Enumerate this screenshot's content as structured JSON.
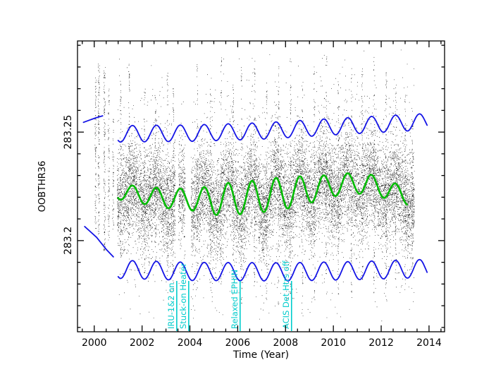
{
  "figure": {
    "background": "#ffffff"
  },
  "chart_data": {
    "type": "scatter",
    "title": "",
    "xlabel": "Time (Year)",
    "ylabel": "OOBTHR36",
    "xlim": [
      1999.3,
      2014.65
    ],
    "ylim": [
      283.158,
      283.292
    ],
    "x_ticks": [
      2000,
      2002,
      2004,
      2006,
      2008,
      2010,
      2012,
      2014
    ],
    "x_tick_labels": [
      "2000",
      "2002",
      "2004",
      "2006",
      "2008",
      "2010",
      "2012",
      "2014"
    ],
    "x_minor_step": 0.5,
    "y_ticks": [
      283.2,
      283.25
    ],
    "y_tick_labels": [
      "283.2",
      "283.25"
    ],
    "y_minor_step": 0.01,
    "grid": false,
    "legend": false,
    "colors": {
      "points": "#000000",
      "mean": "#00bb00",
      "envelope": "#1414e6",
      "annotation": "#00cccc",
      "axis": "#000000",
      "text": "#000000"
    },
    "series": [
      {
        "name": "seasonal-mean",
        "color": "mean",
        "stroke_width": 2.6,
        "type": "sinusoid",
        "period": 1.0,
        "phase": 0.35,
        "x_start": 2001.0,
        "x_end": 2013.1,
        "amplitude": 0.0055,
        "amp_trend": [
          [
            2001,
            0.0035
          ],
          [
            2004,
            0.005
          ],
          [
            2005.5,
            0.0075
          ],
          [
            2008,
            0.0075
          ],
          [
            2010,
            0.005
          ],
          [
            2013.1,
            0.004
          ]
        ],
        "trend": [
          [
            2001,
            283.2225
          ],
          [
            2003,
            283.2195
          ],
          [
            2005,
            283.2185
          ],
          [
            2007,
            283.2205
          ],
          [
            2009,
            283.2235
          ],
          [
            2010.5,
            283.2262
          ],
          [
            2011.5,
            283.2262
          ],
          [
            2012.5,
            283.2225
          ],
          [
            2013.1,
            283.2205
          ]
        ]
      },
      {
        "name": "upper-envelope",
        "color": "envelope",
        "stroke_width": 1.8,
        "type": "sinusoid",
        "period": 1.0,
        "phase": 0.35,
        "x_start": 2001.0,
        "x_end": 2013.95,
        "amplitude": 0.0038,
        "trend": [
          [
            2001,
            283.2492
          ],
          [
            2004,
            283.2495
          ],
          [
            2007,
            283.2505
          ],
          [
            2010,
            283.2525
          ],
          [
            2013.95,
            283.2548
          ]
        ]
      },
      {
        "name": "lower-envelope",
        "color": "envelope",
        "stroke_width": 1.8,
        "type": "sinusoid",
        "period": 1.0,
        "phase": 0.35,
        "x_start": 2001.0,
        "x_end": 2013.95,
        "amplitude": 0.0042,
        "trend": [
          [
            2001,
            283.1868
          ],
          [
            2004,
            283.1858
          ],
          [
            2008,
            283.1856
          ],
          [
            2011,
            283.1862
          ],
          [
            2013.95,
            283.1872
          ]
        ]
      },
      {
        "name": "pre2001-upper-segment",
        "color": "envelope",
        "stroke_width": 1.8,
        "type": "polyline",
        "points": [
          [
            1999.55,
            283.2545
          ],
          [
            2000.05,
            283.2565
          ],
          [
            2000.35,
            283.2575
          ]
        ]
      },
      {
        "name": "pre2001-lower-segment",
        "color": "envelope",
        "stroke_width": 1.8,
        "type": "polyline",
        "points": [
          [
            1999.6,
            283.2065
          ],
          [
            2000.1,
            283.2015
          ],
          [
            2000.5,
            283.196
          ],
          [
            2000.8,
            283.1925
          ]
        ]
      }
    ],
    "scatter": {
      "seed": 1337,
      "core": {
        "x_start": 2000.95,
        "x_end": 2013.38,
        "n": 12000,
        "sigma": 0.0105
      },
      "halo": {
        "n": 3000,
        "sigma": 0.023
      },
      "gaps": [
        [
          2003.38,
          2003.52
        ],
        [
          2003.8,
          2004.04
        ]
      ],
      "early_columns": [
        {
          "x": 2000.05,
          "ylo": 283.205,
          "yhi": 283.275,
          "n": 90
        },
        {
          "x": 2000.18,
          "ylo": 283.2,
          "yhi": 283.282,
          "n": 120
        },
        {
          "x": 2000.42,
          "ylo": 283.195,
          "yhi": 283.28,
          "n": 140
        },
        {
          "x": 2000.6,
          "ylo": 283.2,
          "yhi": 283.27,
          "n": 80
        },
        {
          "x": 2000.78,
          "ylo": 283.205,
          "yhi": 283.258,
          "n": 55
        }
      ],
      "spike_n": 65,
      "spike_jitter": 0.045,
      "spikes": [
        [
          2001.1,
          283.19,
          283.275
        ],
        [
          2001.45,
          283.2,
          283.282
        ],
        [
          2002.1,
          283.185,
          283.272
        ],
        [
          2002.55,
          283.19,
          283.268
        ],
        [
          2003.05,
          283.18,
          283.278
        ],
        [
          2003.3,
          283.175,
          283.272
        ],
        [
          2004.3,
          283.178,
          283.282
        ],
        [
          2004.85,
          283.172,
          283.27
        ],
        [
          2005.3,
          283.18,
          283.285
        ],
        [
          2005.8,
          283.175,
          283.272
        ],
        [
          2006.15,
          283.17,
          283.28
        ],
        [
          2006.7,
          283.178,
          283.285
        ],
        [
          2007.2,
          283.172,
          283.278
        ],
        [
          2007.7,
          283.168,
          283.282
        ],
        [
          2008.2,
          283.175,
          283.285
        ],
        [
          2008.7,
          283.165,
          283.275
        ],
        [
          2009.2,
          283.172,
          283.28
        ],
        [
          2009.7,
          283.178,
          283.285
        ],
        [
          2010.2,
          283.175,
          283.278
        ],
        [
          2010.75,
          283.172,
          283.282
        ],
        [
          2011.2,
          283.178,
          283.28
        ],
        [
          2011.7,
          283.175,
          283.285
        ],
        [
          2012.2,
          283.172,
          283.278
        ],
        [
          2012.6,
          283.178,
          283.272
        ],
        [
          2013.0,
          283.18,
          283.268
        ],
        [
          2013.3,
          283.185,
          283.262
        ]
      ]
    },
    "annotations": [
      {
        "label": "IRU-1&2 on",
        "x": 2003.45
      },
      {
        "label": "Stuck-on Heater",
        "x": 2003.95
      },
      {
        "label": "Relaxed EPHIN",
        "x": 2006.1
      },
      {
        "label": "ACIS Det Htrs off",
        "x": 2008.25
      }
    ]
  }
}
